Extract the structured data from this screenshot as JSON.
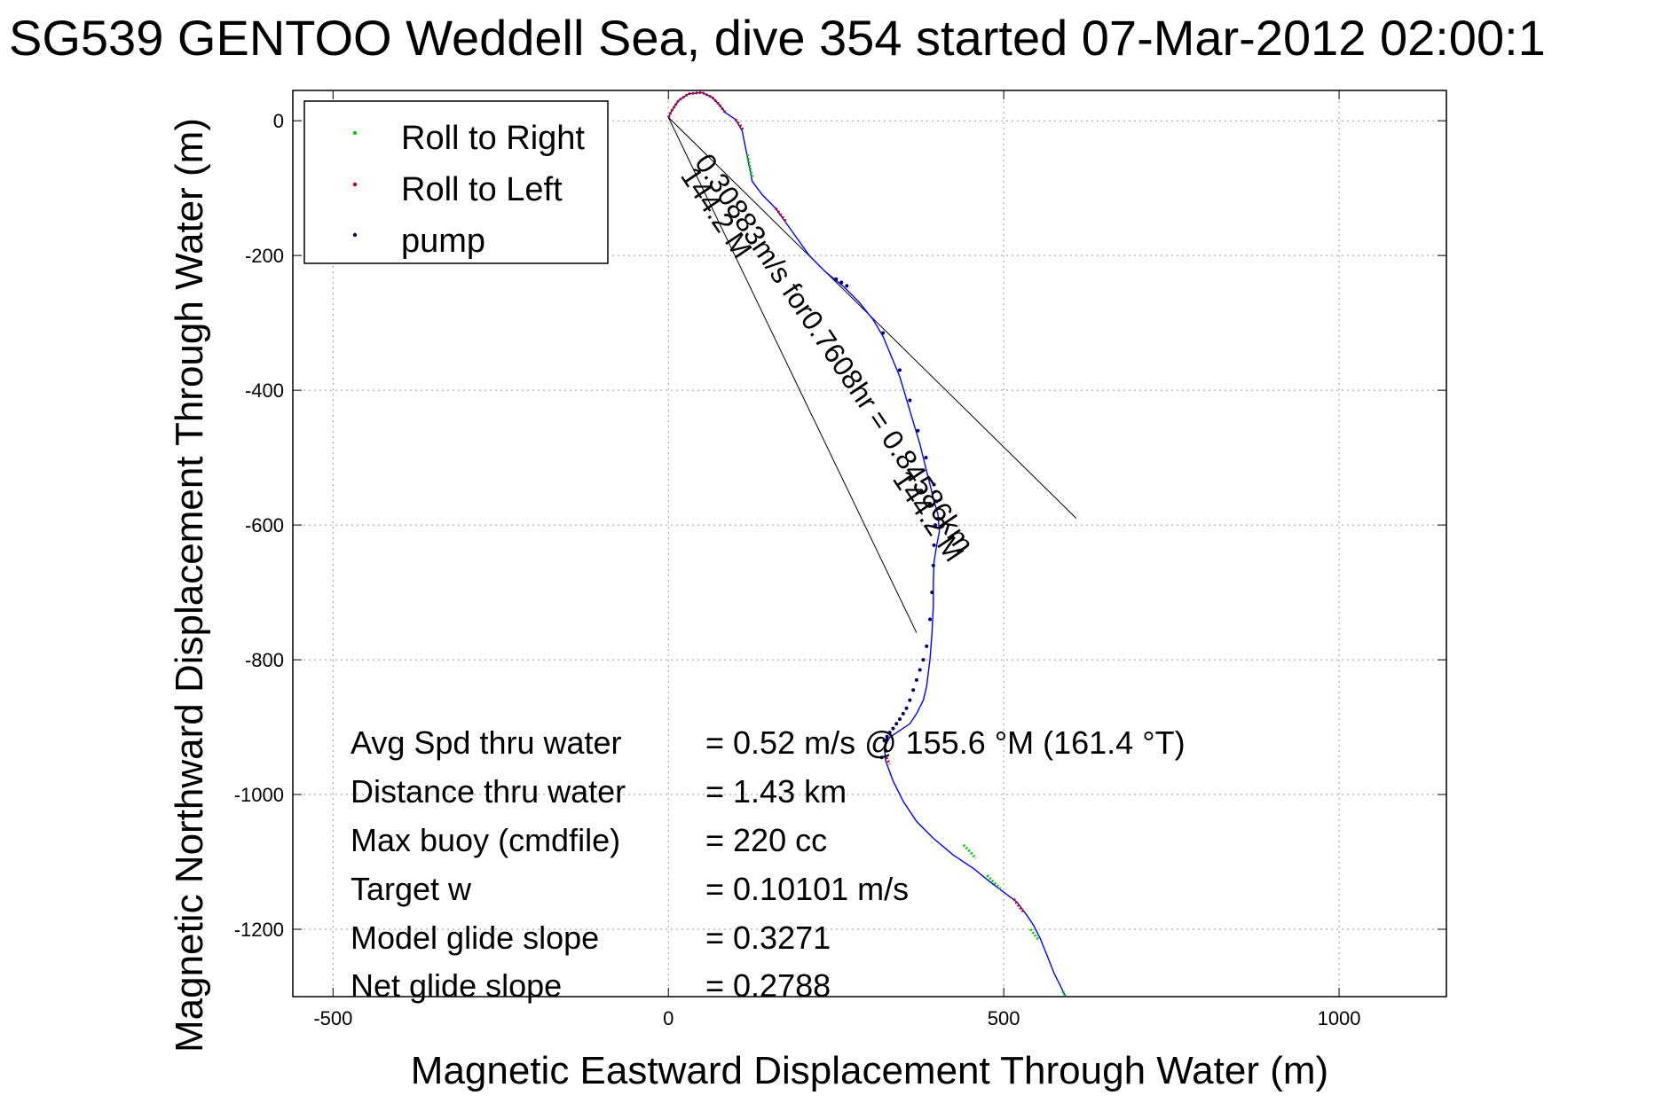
{
  "chart_data": {
    "type": "line",
    "title": "SG539 GENTOO Weddell Sea, dive 354 started 07-Mar-2012 02:00:1",
    "xlabel": "Magnetic Eastward Displacement Through Water (m)",
    "ylabel": "Magnetic Northward Displacement Through Water (m)",
    "xlim": [
      -560,
      1160
    ],
    "ylim": [
      -1300,
      45
    ],
    "xticks": [
      -500,
      0,
      500,
      1000
    ],
    "xtick_labels": [
      "-500",
      "0",
      "500",
      "1000"
    ],
    "yticks": [
      0,
      -200,
      -400,
      -600,
      -800,
      -1000,
      -1200
    ],
    "ytick_labels": [
      "0",
      "-200",
      "-400",
      "-600",
      "-800",
      "-1000",
      "-1200"
    ],
    "grid": true,
    "legend_position": "top-left",
    "legend": [
      {
        "label": "Roll to Right",
        "color": "#00cc00"
      },
      {
        "label": "Roll to Left",
        "color": "#cc0000"
      },
      {
        "label": "pump",
        "color": "#000066"
      }
    ],
    "series": [
      {
        "color": "#0000ff",
        "x": [
          0,
          5,
          15,
          30,
          50,
          65,
          75,
          85,
          100,
          110,
          115,
          120,
          125,
          140,
          160,
          185,
          210,
          235,
          260,
          285,
          305,
          320,
          345,
          360,
          375,
          385,
          395,
          402,
          404,
          400,
          396,
          395,
          395,
          393,
          390,
          385,
          380,
          375,
          370,
          360,
          345,
          330,
          322,
          324,
          335,
          350,
          370,
          395,
          425,
          455,
          480,
          500,
          520,
          535,
          545,
          555,
          565,
          575,
          585,
          592
        ],
        "y": [
          5,
          15,
          30,
          40,
          42,
          35,
          25,
          12,
          2,
          -15,
          -40,
          -65,
          -90,
          -110,
          -130,
          -165,
          -200,
          -225,
          -245,
          -270,
          -295,
          -320,
          -380,
          -430,
          -480,
          -520,
          -560,
          -585,
          -610,
          -630,
          -655,
          -685,
          -720,
          -760,
          -800,
          -840,
          -860,
          -870,
          -880,
          -895,
          -905,
          -915,
          -930,
          -950,
          -980,
          -1010,
          -1040,
          -1065,
          -1090,
          -1110,
          -1130,
          -1145,
          -1160,
          -1180,
          -1195,
          -1215,
          -1240,
          -1265,
          -1285,
          -1300
        ]
      },
      {
        "name": "Roll to Right",
        "color": "#00cc00",
        "segments": [
          {
            "x": [
              118,
              120,
              123,
              126
            ],
            "y": [
              -50,
              -62,
              -75,
              -85
            ]
          },
          {
            "x": [
              440,
              450,
              458
            ],
            "y": [
              -1075,
              -1085,
              -1095
            ]
          },
          {
            "x": [
              475,
              485,
              495
            ],
            "y": [
              -1120,
              -1130,
              -1140
            ]
          },
          {
            "x": [
              540,
              546,
              552
            ],
            "y": [
              -1200,
              -1208,
              -1216
            ]
          },
          {
            "x": [
              588,
              592
            ],
            "y": [
              -1292,
              -1300
            ]
          }
        ]
      },
      {
        "name": "Roll to Left",
        "color": "#cc0000",
        "segments": [
          {
            "x": [
              0,
              5,
              15,
              30,
              50,
              65,
              75,
              85
            ],
            "y": [
              5,
              15,
              30,
              40,
              42,
              35,
              25,
              12
            ]
          },
          {
            "x": [
              100,
              108,
              112
            ],
            "y": [
              2,
              -8,
              -15
            ]
          },
          {
            "x": [
              160,
              168,
              176
            ],
            "y": [
              -130,
              -140,
              -150
            ]
          },
          {
            "x": [
              515,
              522,
              530
            ],
            "y": [
              -1155,
              -1165,
              -1175
            ]
          },
          {
            "x": [
              325,
              330
            ],
            "y": [
              -945,
              -955
            ]
          }
        ]
      },
      {
        "name": "pump",
        "color": "#000066",
        "points": {
          "x": [
            250,
            258,
            266,
            320,
            345,
            360,
            372,
            384,
            396,
            400,
            398,
            396,
            395,
            393,
            390,
            385,
            380,
            375,
            370,
            365,
            360,
            355,
            350,
            345,
            340,
            335,
            330,
            326,
            322,
            324,
            318
          ],
          "y": [
            -235,
            -240,
            -245,
            -315,
            -370,
            -415,
            -460,
            -500,
            -540,
            -565,
            -600,
            -630,
            -660,
            -700,
            -740,
            -780,
            -800,
            -815,
            -830,
            -845,
            -860,
            -872,
            -880,
            -888,
            -895,
            -902,
            -908,
            -914,
            -920,
            -935,
            -945
          ]
        }
      }
    ],
    "heading_lines": [
      {
        "x": [
          0,
          608
        ],
        "y": [
          5,
          -590
        ]
      },
      {
        "x": [
          0,
          370
        ],
        "y": [
          5,
          -760
        ]
      }
    ],
    "annotations": {
      "line_label_1": "0.30883m/s for0.7608hr = 0.84586km",
      "line_label_2": "144.2 M",
      "line_label_3": "144.2 M"
    },
    "stats": [
      {
        "label": "Avg Spd thru water",
        "value": "=  0.52 m/s @ 155.6 °M (161.4 °T)"
      },
      {
        "label": "Distance thru water",
        "value": "=  1.43 km"
      },
      {
        "label": "Max buoy (cmdfile)",
        "value": "= 220 cc"
      },
      {
        "label": "Target w",
        "value": "= 0.10101 m/s"
      },
      {
        "label": "Model glide slope",
        "value": "= 0.3271"
      },
      {
        "label": "Net glide slope",
        "value": "= 0.2788"
      }
    ]
  }
}
